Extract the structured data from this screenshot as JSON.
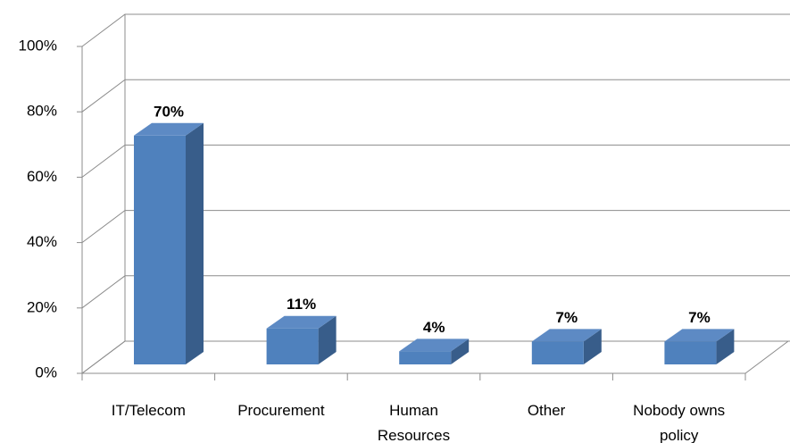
{
  "chart_data": {
    "type": "bar3d",
    "categories": [
      "IT/Telecom",
      "Procurement",
      "Human Resources",
      "Other",
      "Nobody owns policy"
    ],
    "values": [
      70,
      11,
      4,
      7,
      7
    ],
    "value_labels": [
      "70%",
      "11%",
      "4%",
      "7%",
      "7%"
    ],
    "color": "#4f81bd",
    "ylim": [
      0,
      100
    ],
    "yticks": [
      {
        "value": 0,
        "label": "0%"
      },
      {
        "value": 20,
        "label": "20%"
      },
      {
        "value": 40,
        "label": "40%"
      },
      {
        "value": 60,
        "label": "60%"
      },
      {
        "value": 80,
        "label": "80%"
      },
      {
        "value": 100,
        "label": "100%"
      }
    ],
    "grid": true
  }
}
